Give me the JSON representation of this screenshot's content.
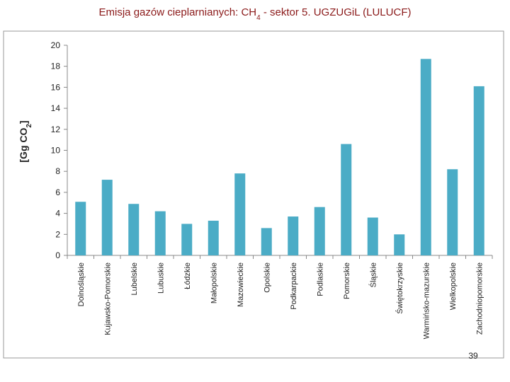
{
  "chart_data": {
    "type": "bar",
    "title": [
      "Emisja gazów cieplarnianych: CH",
      "4",
      " - sektor 5. UGZUGiL (LULUCF)"
    ],
    "y_label": [
      "[Gg CO",
      "2",
      "]"
    ],
    "categories": [
      "Dolnośląskie",
      "Kujawsko-Pomorskie",
      "Lubelskie",
      "Lubuskie",
      "Łódzkie",
      "Małopolskie",
      "Mazowieckie",
      "Opolskie",
      "Podkarpackie",
      "Podlaskie",
      "Pomorskie",
      "Śląskie",
      "Świętokrzyskie",
      "Warmińsko-mazurskie",
      "Wielkopolskie",
      "Zachodniopomorskie"
    ],
    "values": [
      5.1,
      7.2,
      4.9,
      4.2,
      3.0,
      3.3,
      7.8,
      2.6,
      3.7,
      4.6,
      10.6,
      3.6,
      2.0,
      18.7,
      8.2,
      16.1
    ],
    "color": "#4bacc6",
    "ylim": [
      0,
      20
    ],
    "yticks": [
      0,
      2,
      4,
      6,
      8,
      10,
      12,
      14,
      16,
      18,
      20
    ],
    "grid": false
  },
  "page_number": "39"
}
